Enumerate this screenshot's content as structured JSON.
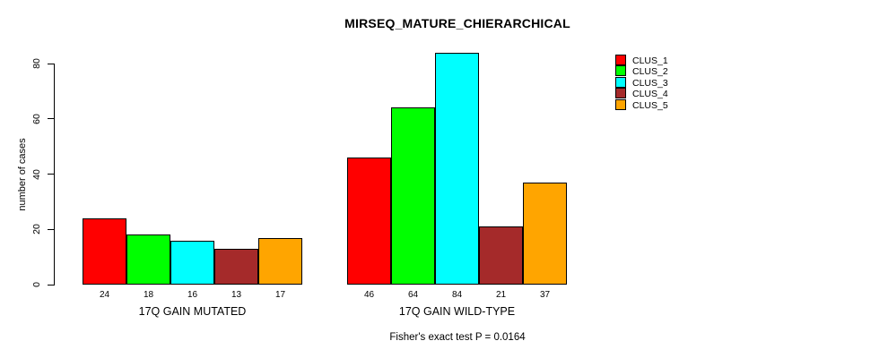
{
  "chart_data": {
    "type": "bar",
    "title": "MIRSEQ_MATURE_CHIERARCHICAL",
    "ylabel": "number of cases",
    "xlabel": "",
    "yticks": [
      0,
      20,
      40,
      60,
      80
    ],
    "ylim": [
      0,
      84
    ],
    "grid": false,
    "legend_position": "topright",
    "groups": [
      {
        "label": "17Q GAIN MUTATED",
        "values": [
          24,
          18,
          16,
          13,
          17
        ]
      },
      {
        "label": "17Q GAIN WILD-TYPE",
        "values": [
          46,
          64,
          84,
          21,
          37
        ]
      }
    ],
    "series": [
      {
        "name": "CLUS_1",
        "color": "#FF0000"
      },
      {
        "name": "CLUS_2",
        "color": "#00FF00"
      },
      {
        "name": "CLUS_3",
        "color": "#00FFFF"
      },
      {
        "name": "CLUS_4",
        "color": "#A52A2A"
      },
      {
        "name": "CLUS_5",
        "color": "#FFA500"
      }
    ],
    "annotation": "Fisher's exact test P = 0.0164"
  }
}
